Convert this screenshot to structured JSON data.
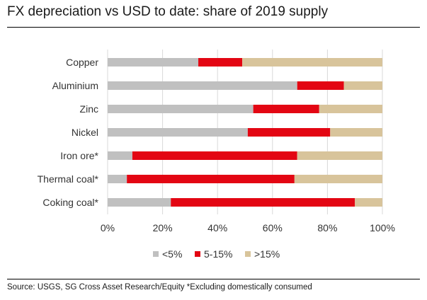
{
  "header": {
    "title": "FX depreciation vs USD to date: share of 2019 supply"
  },
  "footer": {
    "source": "Source: USGS, SG Cross Asset Research/Equity *Excluding domestically consumed"
  },
  "colors": {
    "below_5": "#c0c0c0",
    "mid_5_15": "#e30613",
    "above_15": "#d8c49b",
    "gridline": "#d9d9d9",
    "axis_text": "#333333"
  },
  "chart_data": {
    "type": "bar",
    "orientation": "horizontal",
    "stacked": true,
    "title": "FX depreciation vs USD to date: share of 2019 supply",
    "xlabel": "",
    "ylabel": "",
    "xlim": [
      0,
      100
    ],
    "x_ticks": [
      "0%",
      "20%",
      "40%",
      "60%",
      "80%",
      "100%"
    ],
    "grid": true,
    "legend_position": "bottom",
    "categories": [
      "Copper",
      "Aluminium",
      "Zinc",
      "Nickel",
      "Iron ore*",
      "Thermal coal*",
      "Coking coal*"
    ],
    "series": [
      {
        "name": "<5%",
        "color": "#c0c0c0",
        "values": [
          33,
          69,
          53,
          51,
          9,
          7,
          23
        ]
      },
      {
        "name": "5-15%",
        "color": "#e30613",
        "values": [
          16,
          17,
          24,
          30,
          60,
          61,
          67
        ]
      },
      {
        "name": ">15%",
        "color": "#d8c49b",
        "values": [
          51,
          14,
          23,
          19,
          31,
          32,
          10
        ]
      }
    ]
  }
}
